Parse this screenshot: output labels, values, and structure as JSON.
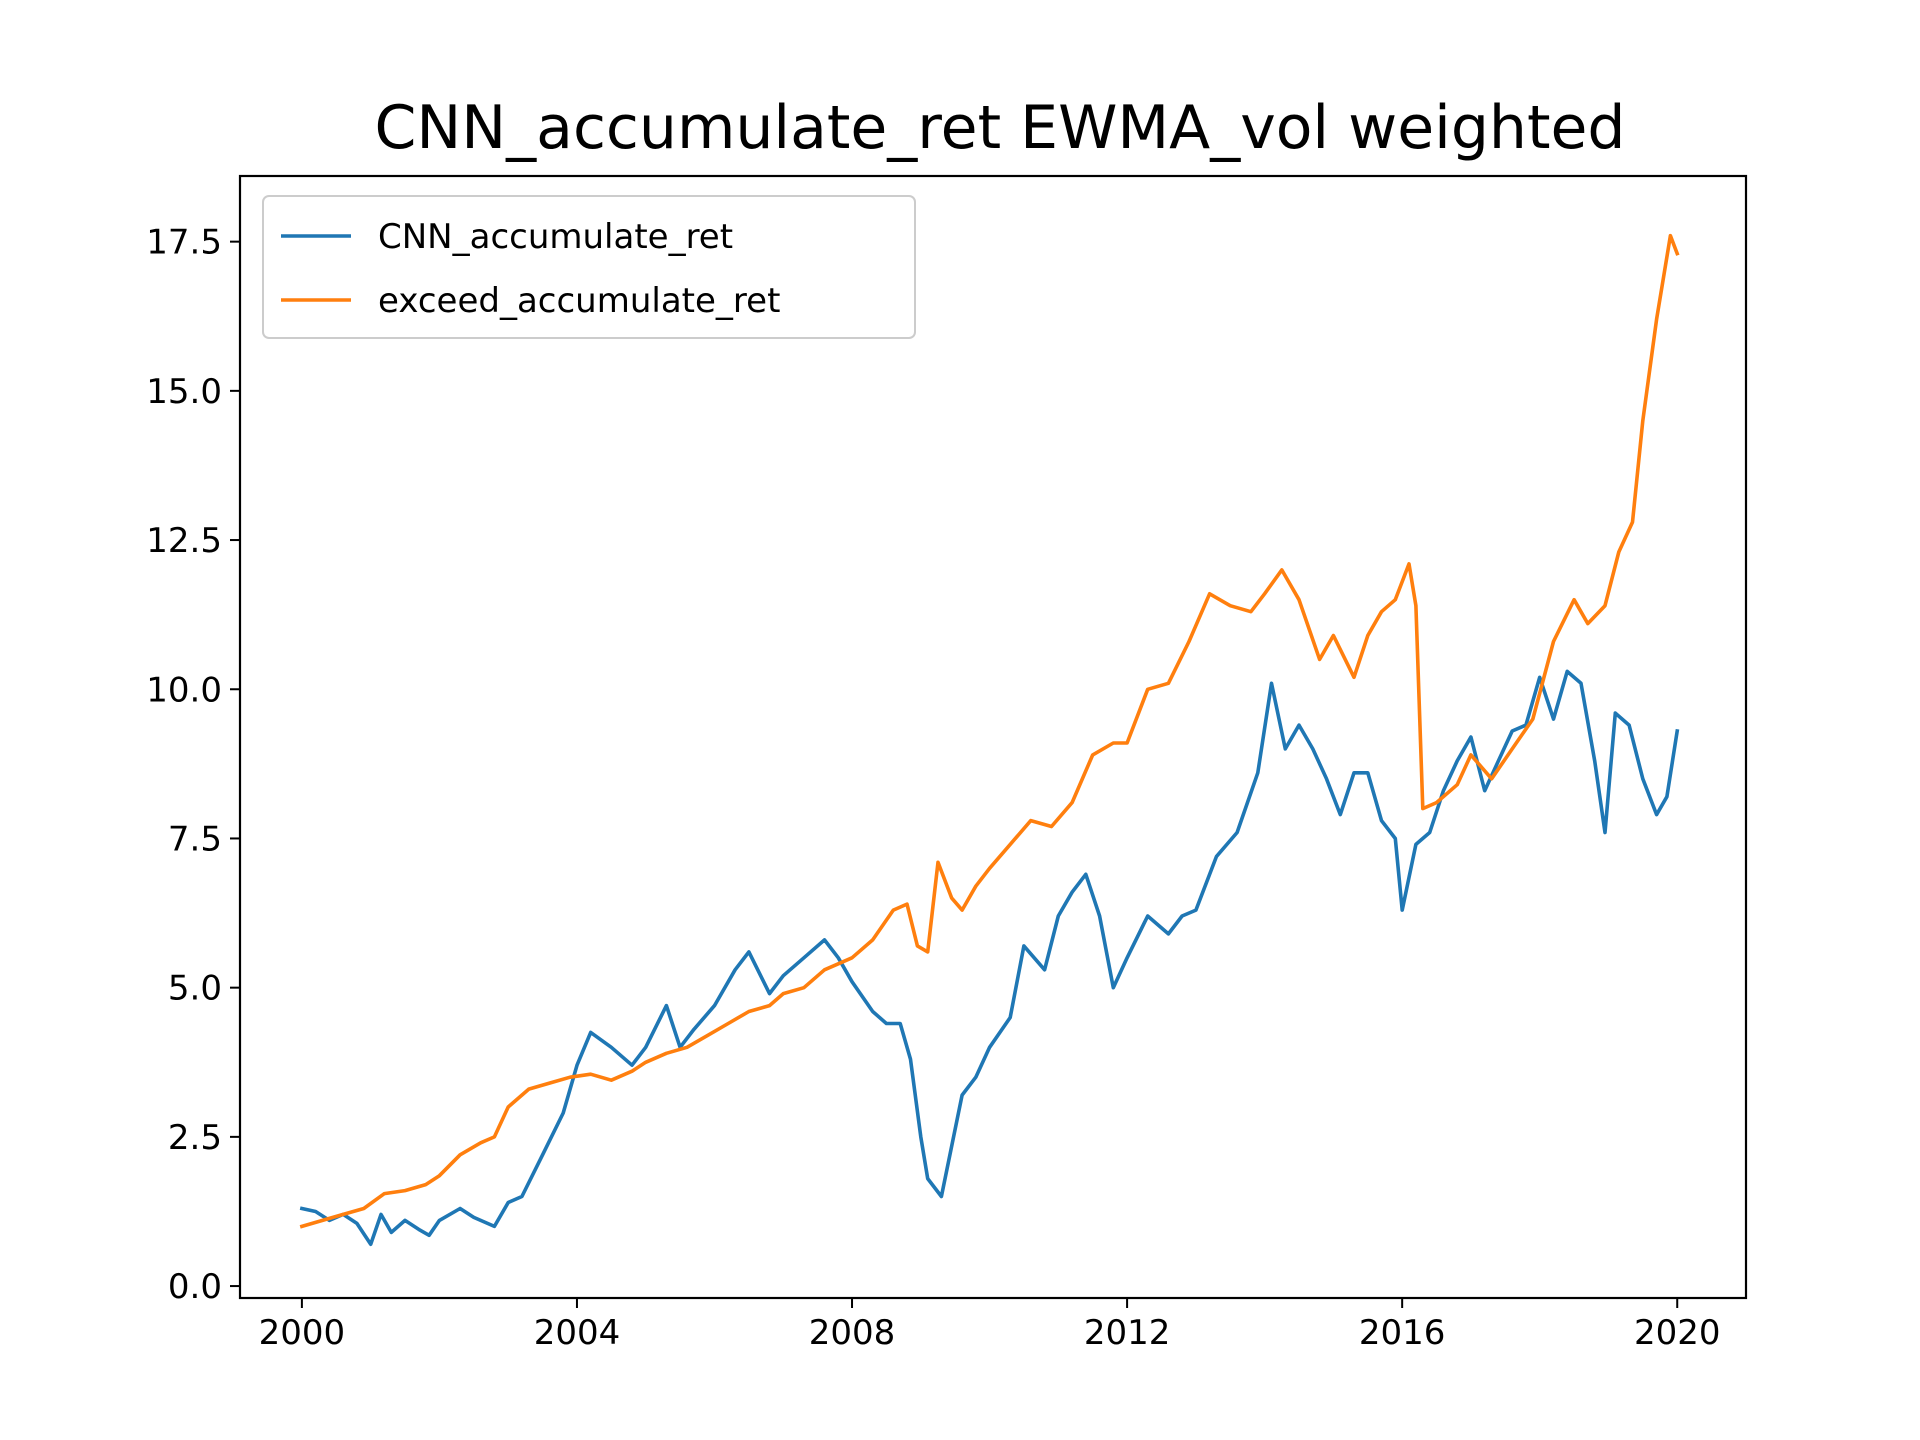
{
  "chart_data": {
    "type": "line",
    "title": "CNN_accumulate_ret EWMA_vol weighted",
    "xlabel": "",
    "ylabel": "",
    "xlim": [
      1999.1,
      2021.0
    ],
    "ylim": [
      -0.2,
      18.6
    ],
    "xticks": [
      2000,
      2004,
      2008,
      2012,
      2016,
      2020
    ],
    "xtick_labels": [
      "2000",
      "2004",
      "2008",
      "2012",
      "2016",
      "2020"
    ],
    "yticks": [
      0.0,
      2.5,
      5.0,
      7.5,
      10.0,
      12.5,
      15.0,
      17.5
    ],
    "ytick_labels": [
      "0.0",
      "2.5",
      "5.0",
      "7.5",
      "10.0",
      "12.5",
      "15.0",
      "17.5"
    ],
    "legend_position": "upper-left",
    "grid": false,
    "series": [
      {
        "name": "CNN_accumulate_ret",
        "color": "#1f77b4",
        "x": [
          2000.0,
          2000.2,
          2000.4,
          2000.6,
          2000.8,
          2001.0,
          2001.15,
          2001.3,
          2001.5,
          2001.7,
          2001.85,
          2002.0,
          2002.3,
          2002.5,
          2002.8,
          2003.0,
          2003.2,
          2003.5,
          2003.8,
          2004.0,
          2004.2,
          2004.5,
          2004.8,
          2005.0,
          2005.3,
          2005.5,
          2005.7,
          2006.0,
          2006.3,
          2006.5,
          2006.8,
          2007.0,
          2007.3,
          2007.6,
          2007.8,
          2008.0,
          2008.3,
          2008.5,
          2008.7,
          2008.85,
          2009.0,
          2009.1,
          2009.3,
          2009.6,
          2009.8,
          2010.0,
          2010.3,
          2010.5,
          2010.8,
          2011.0,
          2011.2,
          2011.4,
          2011.6,
          2011.8,
          2012.0,
          2012.3,
          2012.6,
          2012.8,
          2013.0,
          2013.3,
          2013.6,
          2013.9,
          2014.1,
          2014.3,
          2014.5,
          2014.7,
          2014.9,
          2015.1,
          2015.3,
          2015.5,
          2015.7,
          2015.9,
          2016.0,
          2016.2,
          2016.4,
          2016.6,
          2016.8,
          2017.0,
          2017.2,
          2017.4,
          2017.6,
          2017.8,
          2018.0,
          2018.2,
          2018.4,
          2018.6,
          2018.8,
          2018.95,
          2019.1,
          2019.3,
          2019.5,
          2019.7,
          2019.85,
          2020.0
        ],
        "y": [
          1.3,
          1.25,
          1.1,
          1.2,
          1.05,
          0.7,
          1.2,
          0.9,
          1.1,
          0.95,
          0.85,
          1.1,
          1.3,
          1.15,
          1.0,
          1.4,
          1.5,
          2.2,
          2.9,
          3.7,
          4.25,
          4.0,
          3.7,
          4.0,
          4.7,
          4.0,
          4.3,
          4.7,
          5.3,
          5.6,
          4.9,
          5.2,
          5.5,
          5.8,
          5.5,
          5.1,
          4.6,
          4.4,
          4.4,
          3.8,
          2.5,
          1.8,
          1.5,
          3.2,
          3.5,
          4.0,
          4.5,
          5.7,
          5.3,
          6.2,
          6.6,
          6.9,
          6.2,
          5.0,
          5.5,
          6.2,
          5.9,
          6.2,
          6.3,
          7.2,
          7.6,
          8.6,
          10.1,
          9.0,
          9.4,
          9.0,
          8.5,
          7.9,
          8.6,
          8.6,
          7.8,
          7.5,
          6.3,
          7.4,
          7.6,
          8.3,
          8.8,
          9.2,
          8.3,
          8.8,
          9.3,
          9.4,
          10.2,
          9.5,
          10.3,
          10.1,
          8.8,
          7.6,
          9.6,
          9.4,
          8.5,
          7.9,
          8.2,
          9.3
        ]
      },
      {
        "name": "exceed_accumulate_ret",
        "color": "#ff7f0e",
        "x": [
          2000.0,
          2000.3,
          2000.6,
          2000.9,
          2001.2,
          2001.5,
          2001.8,
          2002.0,
          2002.3,
          2002.6,
          2002.8,
          2003.0,
          2003.3,
          2003.6,
          2003.9,
          2004.2,
          2004.5,
          2004.8,
          2005.0,
          2005.3,
          2005.6,
          2005.9,
          2006.2,
          2006.5,
          2006.8,
          2007.0,
          2007.3,
          2007.6,
          2007.8,
          2008.0,
          2008.3,
          2008.6,
          2008.8,
          2008.95,
          2009.1,
          2009.25,
          2009.45,
          2009.6,
          2009.8,
          2010.0,
          2010.3,
          2010.6,
          2010.9,
          2011.2,
          2011.5,
          2011.8,
          2012.0,
          2012.3,
          2012.6,
          2012.9,
          2013.2,
          2013.5,
          2013.8,
          2014.0,
          2014.25,
          2014.5,
          2014.8,
          2015.0,
          2015.3,
          2015.5,
          2015.7,
          2015.9,
          2016.1,
          2016.2,
          2016.3,
          2016.5,
          2016.8,
          2017.0,
          2017.3,
          2017.6,
          2017.9,
          2018.2,
          2018.5,
          2018.7,
          2018.95,
          2019.15,
          2019.35,
          2019.5,
          2019.7,
          2019.9,
          2020.0
        ],
        "y": [
          1.0,
          1.1,
          1.2,
          1.3,
          1.55,
          1.6,
          1.7,
          1.85,
          2.2,
          2.4,
          2.5,
          3.0,
          3.3,
          3.4,
          3.5,
          3.55,
          3.45,
          3.6,
          3.75,
          3.9,
          4.0,
          4.2,
          4.4,
          4.6,
          4.7,
          4.9,
          5.0,
          5.3,
          5.4,
          5.5,
          5.8,
          6.3,
          6.4,
          5.7,
          5.6,
          7.1,
          6.5,
          6.3,
          6.7,
          7.0,
          7.4,
          7.8,
          7.7,
          8.1,
          8.9,
          9.1,
          9.1,
          10.0,
          10.1,
          10.8,
          11.6,
          11.4,
          11.3,
          11.6,
          12.0,
          11.5,
          10.5,
          10.9,
          10.2,
          10.9,
          11.3,
          11.5,
          12.1,
          11.4,
          8.0,
          8.1,
          8.4,
          8.9,
          8.5,
          9.0,
          9.5,
          10.8,
          11.5,
          11.1,
          11.4,
          12.3,
          12.8,
          14.5,
          16.2,
          17.6,
          17.3
        ]
      }
    ]
  }
}
